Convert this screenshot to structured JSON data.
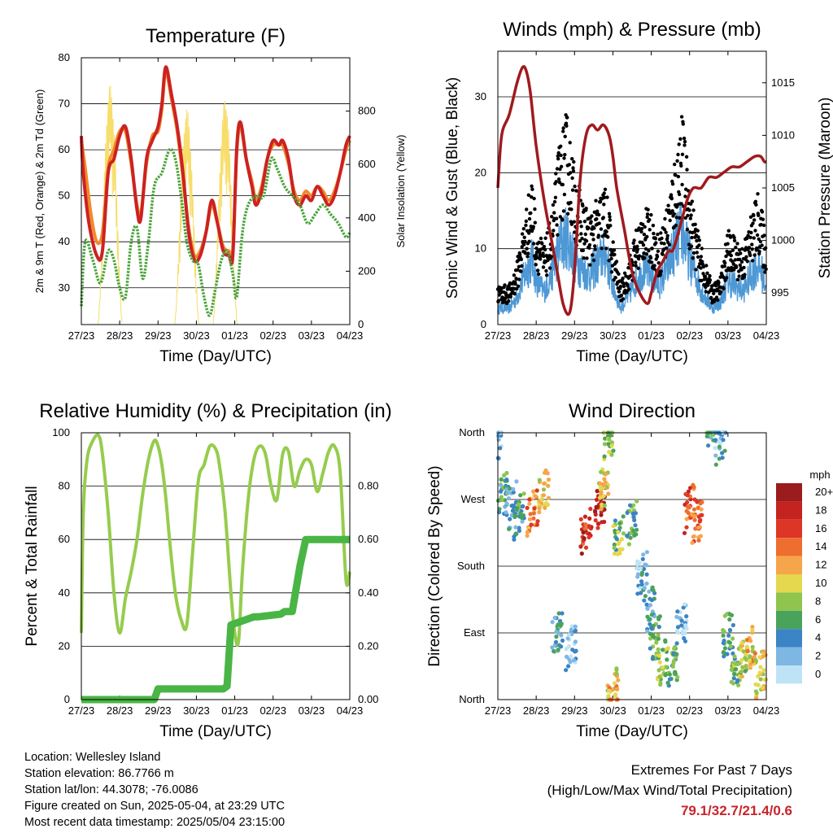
{
  "x_ticks": [
    "27/23",
    "28/23",
    "29/23",
    "30/23",
    "01/23",
    "02/23",
    "03/23",
    "04/23"
  ],
  "colors": {
    "temp2m": "#cc2222",
    "temp9m": "#f08a2c",
    "dew": "#4aa33a",
    "solar": "#f7dd6a",
    "wind": "#4d98d5",
    "gust": "#000000",
    "pressure": "#a01a1e",
    "rh": "#96cc4e",
    "precip": "#49b545"
  },
  "chart_data": [
    {
      "type": "line",
      "title": "Temperature (F)",
      "xlabel": "Time (Day/UTC)",
      "ylabel": "2m & 9m T (Red, Orange) & 2m Td (Green)",
      "y2label": "Solar Insolation (Yellow)",
      "ylim": [
        22,
        80
      ],
      "y2lim": [
        0,
        1000
      ],
      "y_ticks": [
        30,
        40,
        50,
        60,
        70,
        80
      ],
      "y2_ticks": [
        0,
        200,
        400,
        600,
        800
      ],
      "x_unit": "days since 27/23",
      "series": [
        {
          "name": "2m T",
          "x": [
            0,
            0.05,
            0.2,
            0.4,
            0.55,
            0.7,
            0.85,
            1.0,
            1.15,
            1.3,
            1.45,
            1.55,
            1.7,
            1.85,
            2.0,
            2.1,
            2.2,
            2.35,
            2.5,
            2.65,
            2.8,
            2.95,
            3.1,
            3.25,
            3.4,
            3.55,
            3.7,
            3.85,
            3.95,
            4.05,
            4.15,
            4.3,
            4.45,
            4.55,
            4.7,
            4.85,
            5.0,
            5.15,
            5.25,
            5.4,
            5.55,
            5.7,
            5.85,
            6.0,
            6.15,
            6.3,
            6.45,
            6.6,
            6.75,
            6.9,
            7.0
          ],
          "y": [
            63,
            55,
            44,
            37,
            38,
            55,
            58,
            63,
            65,
            58,
            47,
            45,
            58,
            62,
            65,
            70,
            78,
            72,
            65,
            55,
            42,
            36,
            37,
            42,
            49,
            44,
            38,
            37,
            37,
            60,
            66,
            58,
            52,
            48,
            51,
            58,
            62,
            61,
            62,
            58,
            50,
            48,
            50,
            49,
            52,
            50,
            48,
            50,
            55,
            61,
            63
          ]
        },
        {
          "name": "9m T",
          "x": [
            0,
            0.1,
            0.25,
            0.4,
            0.55,
            0.7,
            0.85,
            1.0,
            1.15,
            1.3,
            1.45,
            1.55,
            1.7,
            1.85,
            2.0,
            2.1,
            2.2,
            2.35,
            2.5,
            2.65,
            2.8,
            2.95,
            3.1,
            3.25,
            3.4,
            3.55,
            3.7,
            3.85,
            3.95,
            4.05,
            4.15,
            4.3,
            4.45,
            4.55,
            4.7,
            4.85,
            5.0,
            5.15,
            5.25,
            5.4,
            5.55,
            5.7,
            5.85,
            6.0,
            6.15,
            6.3,
            6.45,
            6.6,
            6.75,
            6.9,
            7.0
          ],
          "y": [
            62,
            56,
            46,
            40,
            42,
            56,
            60,
            64,
            64,
            57,
            48,
            46,
            57,
            63,
            64,
            69,
            77,
            71,
            64,
            54,
            43,
            37,
            38,
            42,
            48,
            44,
            39,
            38,
            38,
            59,
            65,
            58,
            53,
            49,
            52,
            58,
            61,
            61,
            61,
            57,
            51,
            49,
            51,
            50,
            52,
            51,
            49,
            51,
            55,
            60,
            62
          ]
        },
        {
          "name": "2m Td",
          "x": [
            0,
            0.1,
            0.3,
            0.5,
            0.7,
            0.85,
            1.0,
            1.15,
            1.3,
            1.45,
            1.6,
            1.75,
            1.9,
            2.1,
            2.3,
            2.45,
            2.6,
            2.75,
            2.9,
            3.05,
            3.2,
            3.35,
            3.5,
            3.65,
            3.8,
            3.95,
            4.05,
            4.2,
            4.35,
            4.55,
            4.75,
            4.95,
            5.1,
            5.3,
            5.5,
            5.7,
            5.9,
            6.1,
            6.3,
            6.5,
            6.7,
            6.9,
            7.0
          ],
          "y": [
            26,
            40,
            36,
            31,
            38,
            36,
            30,
            28,
            40,
            43,
            32,
            40,
            52,
            55,
            60,
            58,
            50,
            40,
            36,
            35,
            28,
            24,
            30,
            36,
            38,
            33,
            28,
            42,
            48,
            50,
            50,
            58,
            56,
            52,
            50,
            48,
            44,
            46,
            48,
            46,
            44,
            41,
            42
          ]
        },
        {
          "name": "Solar Insolation",
          "axis": "y2",
          "daily_peak_x": [
            0.75,
            1.75,
            2.75,
            3.75,
            4.75,
            5.75,
            6.75
          ],
          "daily_peak_y": [
            900,
            860,
            810,
            850,
            880,
            820,
            780
          ]
        }
      ]
    },
    {
      "type": "scatter",
      "title": "Winds (mph) & Pressure (mb)",
      "xlabel": "Time (Day/UTC)",
      "ylabel": "Sonic Wind & Gust (Blue, Black)",
      "y2label": "Station Pressure (Maroon)",
      "ylim": [
        0,
        36
      ],
      "y2lim": [
        992,
        1018
      ],
      "y_ticks": [
        0,
        10,
        20,
        30
      ],
      "y2_ticks": [
        995,
        1000,
        1005,
        1010,
        1015
      ],
      "x_unit": "days since 27/23",
      "series": [
        {
          "name": "Sonic Wind",
          "envelope_x": [
            0,
            0.3,
            0.5,
            0.7,
            0.9,
            1.0,
            1.2,
            1.4,
            1.6,
            1.8,
            2.0,
            2.2,
            2.4,
            2.6,
            2.8,
            3.0,
            3.2,
            3.4,
            3.6,
            3.8,
            4.0,
            4.2,
            4.4,
            4.6,
            4.8,
            5.0,
            5.2,
            5.4,
            5.6,
            5.8,
            6.0,
            6.2,
            6.4,
            6.6,
            6.8,
            7.0
          ],
          "envelope_y": [
            3,
            3,
            5,
            9,
            12,
            8,
            6,
            9,
            14,
            16,
            12,
            10,
            9,
            11,
            13,
            7,
            3,
            5,
            8,
            10,
            9,
            7,
            10,
            14,
            17,
            12,
            8,
            5,
            3,
            4,
            8,
            7,
            6,
            9,
            11,
            7
          ]
        },
        {
          "name": "Gust",
          "envelope_x": [
            0,
            0.3,
            0.5,
            0.7,
            0.9,
            1.0,
            1.2,
            1.4,
            1.6,
            1.8,
            2.0,
            2.2,
            2.4,
            2.6,
            2.8,
            3.0,
            3.2,
            3.4,
            3.6,
            3.8,
            4.0,
            4.2,
            4.4,
            4.6,
            4.8,
            5.0,
            5.2,
            5.4,
            5.6,
            5.8,
            6.0,
            6.2,
            6.4,
            6.6,
            6.8,
            7.0
          ],
          "envelope_y": [
            5,
            5,
            8,
            14,
            19,
            13,
            10,
            14,
            23,
            27,
            20,
            16,
            14,
            16,
            18,
            11,
            5,
            8,
            12,
            15,
            14,
            11,
            15,
            21,
            27,
            18,
            12,
            8,
            5,
            6,
            12,
            11,
            10,
            14,
            17,
            11
          ]
        },
        {
          "name": "Station Pressure",
          "axis": "y2",
          "x": [
            0,
            0.1,
            0.3,
            0.5,
            0.65,
            0.75,
            0.85,
            1.0,
            1.2,
            1.4,
            1.55,
            1.7,
            1.85,
            1.95,
            2.05,
            2.15,
            2.3,
            2.45,
            2.6,
            2.75,
            2.9,
            3.0,
            3.1,
            3.3,
            3.5,
            3.7,
            3.9,
            4.0,
            4.15,
            4.3,
            4.45,
            4.55,
            4.65,
            4.8,
            4.95,
            5.1,
            5.3,
            5.5,
            5.7,
            5.9,
            6.1,
            6.3,
            6.5,
            6.7,
            6.85,
            6.95,
            7.0
          ],
          "y": [
            1005,
            1010,
            1012,
            1015,
            1016.5,
            1016,
            1014,
            1009,
            1004,
            1000,
            997,
            994,
            993,
            995,
            1000,
            1006,
            1010,
            1011,
            1010.5,
            1011,
            1010,
            1008,
            1005,
            1001,
            997,
            995,
            994,
            995,
            997,
            998,
            999,
            999,
            1000,
            1002,
            1004,
            1005,
            1005,
            1006,
            1006,
            1006.5,
            1007,
            1007,
            1007.5,
            1008,
            1008,
            1007.5,
            1007.5
          ]
        }
      ]
    },
    {
      "type": "line",
      "title": "Relative Humidity (%) & Precipitation (in)",
      "xlabel": "Time (Day/UTC)",
      "ylabel": "Percent & Total Rainfall",
      "ylim": [
        0,
        100
      ],
      "y2lim": [
        0,
        1.0
      ],
      "y_ticks": [
        0,
        20,
        40,
        60,
        80,
        100
      ],
      "y2_ticks": [
        "0.00",
        "0.20",
        "0.40",
        "0.60",
        "0.80"
      ],
      "x_unit": "days since 27/23",
      "series": [
        {
          "name": "Relative Humidity",
          "x": [
            0,
            0.05,
            0.15,
            0.3,
            0.45,
            0.55,
            0.7,
            0.85,
            1.0,
            1.15,
            1.3,
            1.45,
            1.6,
            1.75,
            1.9,
            2.0,
            2.1,
            2.2,
            2.3,
            2.45,
            2.6,
            2.75,
            2.9,
            3.05,
            3.2,
            3.35,
            3.5,
            3.6,
            3.75,
            3.9,
            4.0,
            4.1,
            4.2,
            4.35,
            4.5,
            4.65,
            4.8,
            4.95,
            5.1,
            5.25,
            5.4,
            5.55,
            5.7,
            5.85,
            6.0,
            6.15,
            6.3,
            6.45,
            6.6,
            6.75,
            6.9,
            7.0
          ],
          "y": [
            25,
            70,
            90,
            97,
            99,
            92,
            70,
            40,
            25,
            38,
            48,
            60,
            77,
            90,
            97,
            95,
            88,
            76,
            60,
            40,
            30,
            28,
            55,
            82,
            88,
            95,
            94,
            88,
            70,
            40,
            25,
            22,
            48,
            75,
            90,
            95,
            92,
            80,
            75,
            92,
            93,
            80,
            86,
            90,
            88,
            78,
            85,
            93,
            95,
            85,
            45,
            48
          ]
        },
        {
          "name": "Total Precipitation",
          "axis": "y2",
          "x": [
            0,
            1.6,
            1.9,
            2.0,
            3.55,
            3.7,
            3.8,
            3.9,
            4.5,
            4.6,
            5.2,
            5.3,
            5.5,
            5.7,
            5.85,
            7.0
          ],
          "y": [
            0,
            0,
            0,
            0.04,
            0.04,
            0.04,
            0.05,
            0.28,
            0.31,
            0.31,
            0.32,
            0.33,
            0.33,
            0.5,
            0.6,
            0.6
          ]
        }
      ]
    },
    {
      "type": "scatter",
      "title": "Wind Direction",
      "xlabel": "Time (Day/UTC)",
      "ylabel": "Direction (Colored By Speed)",
      "ylim": [
        0,
        360
      ],
      "y_ticks": [
        "North",
        "East",
        "South",
        "West",
        "North"
      ],
      "colorbar": {
        "title": "mph",
        "labels": [
          "20+",
          "18",
          "16",
          "14",
          "12",
          "10",
          "8",
          "6",
          "4",
          "2",
          "0"
        ],
        "colors": [
          "#9a1c1c",
          "#c5231f",
          "#de3626",
          "#ee6e2f",
          "#f7a54a",
          "#e5d84f",
          "#8fc44e",
          "#4aa35a",
          "#3b84c5",
          "#7eb7e3",
          "#bfe3f6"
        ]
      },
      "series": [
        {
          "name": "Direction",
          "cluster_x": [
            0.0,
            0.15,
            0.35,
            0.55,
            0.9,
            1.2,
            1.55,
            1.9,
            2.3,
            2.65,
            2.75,
            2.9,
            3.0,
            3.15,
            3.5,
            3.75,
            3.95,
            4.1,
            4.3,
            4.55,
            4.8,
            5.0,
            5.2,
            5.55,
            5.8,
            6.0,
            6.2,
            6.4,
            6.6,
            6.85
          ],
          "cluster_dir": [
            350,
            275,
            260,
            250,
            255,
            280,
            90,
            70,
            230,
            260,
            285,
            350,
            10,
            220,
            240,
            170,
            120,
            80,
            50,
            45,
            100,
            260,
            240,
            365,
            350,
            90,
            40,
            60,
            70,
            35
          ],
          "cluster_speed": [
            3,
            5,
            4,
            5,
            13,
            11,
            4,
            2,
            17,
            19,
            10,
            8,
            11,
            7,
            6,
            3,
            4,
            6,
            8,
            6,
            2,
            15,
            14,
            5,
            3,
            6,
            7,
            9,
            11,
            10
          ]
        }
      ]
    }
  ],
  "info": {
    "location": "Location: Wellesley Island",
    "elevation": "Station elevation: 86.7766 m",
    "latlon": "Station lat/lon: 44.3078; -76.0086",
    "created": "Figure created on Sun, 2025-05-04, at 23:29 UTC",
    "recent": "Most recent data timestamp: 2025/05/04 23:15:00"
  },
  "extremes": {
    "title": "Extremes For Past 7 Days",
    "subtitle": "(High/Low/Max Wind/Total Precipitation)",
    "values": "79.1/32.7/21.4/0.6"
  }
}
